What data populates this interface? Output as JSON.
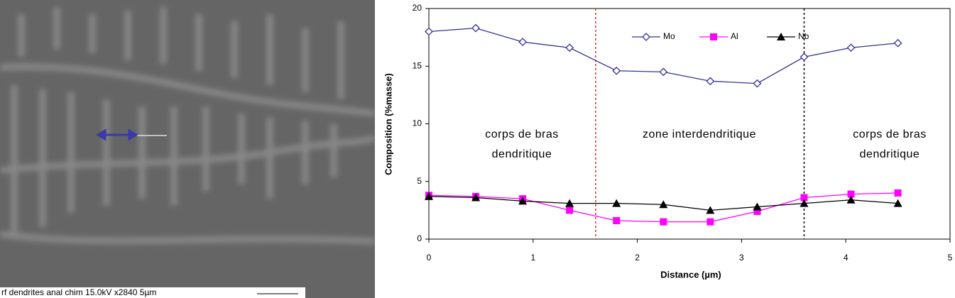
{
  "image_caption": "rf dendrites anal chim  15.0kV  x2840   5µm",
  "chart_data": {
    "type": "line",
    "x_label": "Distance (µm)",
    "y_label": "Composition (%masse)",
    "x": [
      0,
      0.45,
      0.9,
      1.35,
      1.8,
      2.25,
      2.7,
      3.15,
      3.6,
      4.05,
      4.5
    ],
    "series": [
      {
        "name": "Mo",
        "color": "#333399",
        "marker": "diamond",
        "values": [
          18.0,
          18.3,
          17.1,
          16.6,
          14.6,
          14.5,
          13.7,
          13.5,
          15.8,
          16.6,
          17.0
        ]
      },
      {
        "name": "Al",
        "color": "#ff00ff",
        "marker": "square",
        "values": [
          3.8,
          3.7,
          3.5,
          2.5,
          1.6,
          1.5,
          1.5,
          2.4,
          3.6,
          3.9,
          4.0
        ]
      },
      {
        "name": "Nb",
        "color": "#000000",
        "marker": "triangle",
        "values": [
          3.7,
          3.6,
          3.3,
          3.1,
          3.1,
          3.0,
          2.5,
          2.8,
          3.1,
          3.4,
          3.1
        ]
      }
    ],
    "xlim": [
      0,
      5
    ],
    "xticks": [
      0,
      1,
      2,
      3,
      4,
      5
    ],
    "ylim": [
      0,
      20
    ],
    "yticks": [
      0,
      5,
      10,
      15,
      20
    ],
    "vlines": [
      {
        "x": 1.6,
        "color": "#c0392b"
      },
      {
        "x": 3.6,
        "color": "#000000"
      }
    ],
    "annotations": [
      {
        "lines": [
          "corps de bras",
          "dendritique"
        ]
      },
      {
        "lines": [
          "zone  interdendritique"
        ]
      },
      {
        "lines": [
          "corps de bras",
          "dendritique"
        ]
      }
    ],
    "legend": "top"
  }
}
